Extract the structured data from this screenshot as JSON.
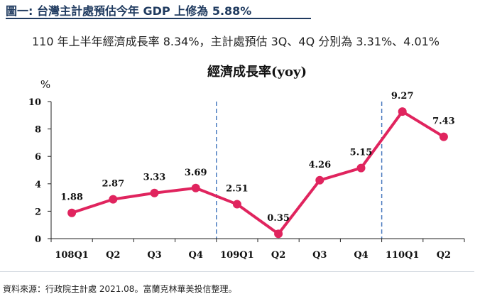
{
  "figure": {
    "title": "圖一: 台灣主計處預估今年 GDP 上修為 5.88%",
    "subtitle": "110 年上半年經濟成長率 8.34%，主計處預估 3Q、4Q 分別為 3.31%、4.01%",
    "source": "資料來源：行政院主計處  2021.08。富蘭克林華美投信整理。"
  },
  "chart_data": {
    "type": "line",
    "title": "經濟成長率(yoy)",
    "ylabel": "%",
    "xlabel": "",
    "categories": [
      "108Q1",
      "Q2",
      "Q3",
      "Q4",
      "109Q1",
      "Q2",
      "Q3",
      "Q4",
      "110Q1",
      "Q2"
    ],
    "series": [
      {
        "values": [
          1.88,
          2.87,
          3.33,
          3.69,
          2.51,
          0.35,
          4.26,
          5.15,
          9.27,
          7.43
        ],
        "labels": [
          "1.88",
          "2.87",
          "3.33",
          "3.69",
          "2.51",
          "0.35",
          "4.26",
          "5.15",
          "9.27",
          "7.43"
        ],
        "color": "#e0245e"
      }
    ],
    "ylim": [
      0,
      10
    ],
    "yticks": [
      0,
      2,
      4,
      6,
      8,
      10
    ],
    "year_dividers": [
      "108Q4|109Q1",
      "109Q4|110Q1"
    ],
    "divider_color": "#4a7bbf",
    "grid": false,
    "legend": "none"
  }
}
